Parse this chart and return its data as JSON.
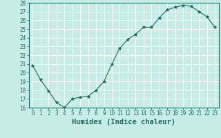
{
  "x": [
    0,
    1,
    2,
    3,
    4,
    5,
    6,
    7,
    8,
    9,
    10,
    11,
    12,
    13,
    14,
    15,
    16,
    17,
    18,
    19,
    20,
    21,
    22,
    23
  ],
  "y": [
    20.8,
    19.2,
    17.9,
    16.6,
    16.0,
    17.0,
    17.2,
    17.3,
    18.0,
    19.0,
    21.0,
    22.8,
    23.8,
    24.4,
    25.2,
    25.2,
    26.3,
    27.2,
    27.5,
    27.7,
    27.6,
    27.0,
    26.4,
    25.2
  ],
  "xlabel": "Humidex (Indice chaleur)",
  "ylim": [
    16,
    28
  ],
  "xlim": [
    -0.5,
    23.5
  ],
  "yticks": [
    16,
    17,
    18,
    19,
    20,
    21,
    22,
    23,
    24,
    25,
    26,
    27,
    28
  ],
  "xticks": [
    0,
    1,
    2,
    3,
    4,
    5,
    6,
    7,
    8,
    9,
    10,
    11,
    12,
    13,
    14,
    15,
    16,
    17,
    18,
    19,
    20,
    21,
    22,
    23
  ],
  "line_color": "#1a6b5e",
  "marker_color": "#1a6b5e",
  "bg_color": "#c8ece6",
  "grid_color": "#ffffff",
  "axis_color": "#1a6b5e",
  "tick_label_fontsize": 5.5,
  "xlabel_fontsize": 7.5
}
